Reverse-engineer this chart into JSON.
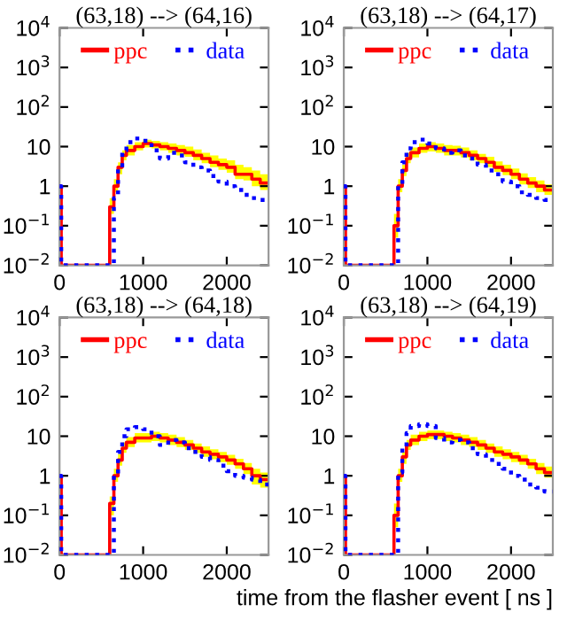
{
  "chart_data": [
    {
      "type": "step",
      "title": "(63,18) --> (64,16)",
      "log": true,
      "legend": "top",
      "marker": "none",
      "xlim": [
        0,
        2500
      ],
      "xticks": [
        0,
        1000,
        2000
      ],
      "ylim": [
        0.01,
        10000
      ],
      "yticks": [
        {
          "value": 0.01,
          "label": "10$^{−2}$"
        },
        {
          "value": 0.1,
          "label": "10$^{−1}$"
        },
        1,
        10,
        {
          "value": 100,
          "label": "10$^{2}$"
        },
        {
          "value": 1000,
          "label": "10$^{3}$"
        },
        {
          "value": 10000,
          "label": "10$^{4}$"
        }
      ],
      "x": [
        0,
        20,
        600,
        650,
        700,
        750,
        800,
        900,
        1000,
        1100,
        1200,
        1300,
        1400,
        1500,
        1600,
        1700,
        1800,
        1900,
        2000,
        2100,
        2200,
        2300,
        2400,
        2500
      ],
      "series": [
        {
          "name": "ppc",
          "color": "#ff0000",
          "line_style": "solid",
          "values": [
            1,
            0.01,
            0.3,
            1,
            3,
            6,
            8,
            10,
            12,
            11,
            10,
            9,
            8,
            7,
            6,
            5,
            4,
            3.5,
            3,
            2,
            2,
            1.5,
            1.2,
            1.2
          ],
          "upper": [
            1,
            0.01,
            0.5,
            1.5,
            4,
            8,
            11,
            13,
            15,
            14,
            13,
            12,
            11,
            10,
            8.5,
            7,
            6,
            5,
            4.5,
            3.5,
            3,
            2.5,
            2,
            2
          ],
          "lower": [
            1,
            0.01,
            0.2,
            0.7,
            2,
            4.5,
            6,
            8,
            9.5,
            9,
            8,
            7,
            6,
            5.5,
            4.5,
            3.8,
            3,
            2.6,
            2.2,
            1.5,
            1.4,
            1,
            0.8,
            0.8
          ]
        },
        {
          "name": "data",
          "color": "#0000ff",
          "line_style": "dotted",
          "values": [
            1,
            0.01,
            0.01,
            0.5,
            3,
            8,
            13,
            16,
            14,
            8,
            5,
            7,
            6,
            4,
            3,
            2.5,
            1.8,
            1.3,
            1,
            0.8,
            0.6,
            0.5,
            0.45,
            0.45
          ]
        }
      ]
    },
    {
      "type": "step",
      "title": "(63,18) --> (64,17)",
      "log": true,
      "legend": "top",
      "marker": "none",
      "xlim": [
        0,
        2500
      ],
      "xticks": [
        0,
        1000,
        2000
      ],
      "ylim": [
        0.01,
        10000
      ],
      "yticks": [
        {
          "value": 0.01,
          "label": "10$^{−2}$"
        },
        {
          "value": 0.1,
          "label": "10$^{−1}$"
        },
        1,
        10,
        {
          "value": 100,
          "label": "10$^{2}$"
        },
        {
          "value": 1000,
          "label": "10$^{3}$"
        },
        {
          "value": 10000,
          "label": "10$^{4}$"
        }
      ],
      "x": [
        0,
        20,
        600,
        650,
        700,
        750,
        800,
        900,
        1000,
        1100,
        1200,
        1300,
        1400,
        1500,
        1600,
        1700,
        1800,
        1900,
        2000,
        2100,
        2200,
        2300,
        2400,
        2500
      ],
      "series": [
        {
          "name": "ppc",
          "color": "#ff0000",
          "line_style": "solid",
          "values": [
            1,
            0.01,
            0.1,
            1,
            2.5,
            5,
            7,
            9,
            10,
            9,
            8,
            8,
            7,
            6,
            5,
            4,
            3,
            2.5,
            2,
            1.5,
            1.2,
            1,
            0.8,
            0.8
          ],
          "upper": [
            1,
            0.01,
            0.2,
            1.5,
            3.5,
            7,
            9.5,
            12,
            13,
            12,
            11,
            10.5,
            9.5,
            8,
            6.5,
            5.5,
            4.2,
            3.5,
            2.8,
            2.1,
            1.7,
            1.4,
            1.1,
            1.1
          ],
          "lower": [
            1,
            0.01,
            0.05,
            0.7,
            1.8,
            3.8,
            5.3,
            7,
            7.5,
            7,
            6,
            6,
            5.3,
            4.5,
            3.8,
            3,
            2.3,
            1.9,
            1.5,
            1.1,
            0.9,
            0.7,
            0.6,
            0.6
          ]
        },
        {
          "name": "data",
          "color": "#0000ff",
          "line_style": "dotted",
          "values": [
            1,
            0.01,
            0.01,
            1,
            4,
            9,
            13,
            15,
            12,
            9,
            7,
            8,
            6,
            5,
            3.5,
            2.5,
            2,
            1.3,
            1,
            0.7,
            0.6,
            0.5,
            0.45,
            0.45
          ]
        }
      ]
    },
    {
      "type": "step",
      "title": "(63,18) --> (64,18)",
      "log": true,
      "legend": "top",
      "marker": "none",
      "xlim": [
        0,
        2500
      ],
      "xticks": [
        0,
        1000,
        2000
      ],
      "ylim": [
        0.01,
        10000
      ],
      "yticks": [
        {
          "value": 0.01,
          "label": "10$^{−2}$"
        },
        {
          "value": 0.1,
          "label": "10$^{−1}$"
        },
        1,
        10,
        {
          "value": 100,
          "label": "10$^{2}$"
        },
        {
          "value": 1000,
          "label": "10$^{3}$"
        },
        {
          "value": 10000,
          "label": "10$^{4}$"
        }
      ],
      "x": [
        0,
        20,
        600,
        650,
        700,
        750,
        800,
        900,
        1000,
        1100,
        1200,
        1300,
        1400,
        1500,
        1600,
        1700,
        1800,
        1900,
        2000,
        2100,
        2200,
        2300,
        2400,
        2500
      ],
      "series": [
        {
          "name": "ppc",
          "color": "#ff0000",
          "line_style": "solid",
          "values": [
            1,
            0.01,
            0.2,
            1,
            2.5,
            5,
            7,
            9,
            9,
            10,
            9,
            8,
            7,
            6,
            5,
            4,
            3.5,
            3,
            2.5,
            2,
            1.5,
            1,
            0.8,
            0.8
          ],
          "upper": [
            1,
            0.01,
            0.3,
            1.5,
            3.5,
            7,
            9.5,
            12,
            12,
            13,
            12,
            11,
            9.5,
            8,
            6.5,
            5.5,
            4.7,
            4,
            3.4,
            2.7,
            2.1,
            1.5,
            1.2,
            1.2
          ],
          "lower": [
            1,
            0.01,
            0.1,
            0.7,
            1.8,
            3.8,
            5.3,
            7,
            7,
            7.5,
            7,
            6,
            5.3,
            4.5,
            3.8,
            3,
            2.6,
            2.2,
            1.9,
            1.5,
            1.1,
            0.6,
            0.5,
            0.5
          ]
        },
        {
          "name": "data",
          "color": "#0000ff",
          "line_style": "dotted",
          "values": [
            1,
            0.01,
            0.01,
            1,
            4,
            10,
            15,
            17,
            15,
            10,
            6,
            8,
            7,
            5,
            4,
            3,
            2.5,
            1.8,
            1.3,
            1,
            0.9,
            0.8,
            0.6,
            0.6
          ]
        }
      ]
    },
    {
      "type": "step",
      "title": "(63,18) --> (64,19)",
      "xlabel": "time from the flasher event [ ns ]",
      "log": true,
      "legend": "top",
      "marker": "none",
      "xlim": [
        0,
        2500
      ],
      "xticks": [
        0,
        1000,
        2000
      ],
      "ylim": [
        0.01,
        10000
      ],
      "yticks": [
        {
          "value": 0.01,
          "label": "10$^{−2}$"
        },
        {
          "value": 0.1,
          "label": "10$^{−1}$"
        },
        1,
        10,
        {
          "value": 100,
          "label": "10$^{2}$"
        },
        {
          "value": 1000,
          "label": "10$^{3}$"
        },
        {
          "value": 10000,
          "label": "10$^{4}$"
        }
      ],
      "x": [
        0,
        20,
        600,
        650,
        700,
        750,
        800,
        900,
        1000,
        1100,
        1200,
        1300,
        1400,
        1500,
        1600,
        1700,
        1800,
        1900,
        2000,
        2100,
        2200,
        2300,
        2400,
        2500
      ],
      "series": [
        {
          "name": "ppc",
          "color": "#ff0000",
          "line_style": "solid",
          "values": [
            1,
            0.01,
            0.1,
            1,
            3,
            6,
            8,
            10,
            11,
            11,
            10,
            9,
            8,
            7,
            6,
            5,
            4,
            3.5,
            3,
            2.5,
            2,
            1.5,
            1.2,
            1.2
          ],
          "upper": [
            1,
            0.01,
            0.2,
            1.5,
            4,
            8,
            11,
            13,
            14,
            14,
            13,
            12,
            11,
            9.5,
            8,
            6.5,
            5.5,
            4.7,
            4,
            3.4,
            2.7,
            2.1,
            1.7,
            1.7
          ],
          "lower": [
            1,
            0.01,
            0.05,
            0.7,
            2,
            4.5,
            6,
            7.5,
            8.5,
            8.5,
            7.5,
            7,
            6,
            5.3,
            4.5,
            3.8,
            3,
            2.6,
            2.2,
            1.9,
            1.5,
            1.1,
            0.9,
            0.9
          ]
        },
        {
          "name": "data",
          "color": "#0000ff",
          "line_style": "dotted",
          "values": [
            1,
            0.01,
            0.01,
            1.2,
            5,
            12,
            18,
            20,
            18,
            9,
            7,
            8,
            7,
            5,
            3.5,
            2.5,
            2,
            1.5,
            1,
            0.8,
            0.6,
            0.5,
            0.4,
            0.4
          ]
        }
      ]
    }
  ]
}
